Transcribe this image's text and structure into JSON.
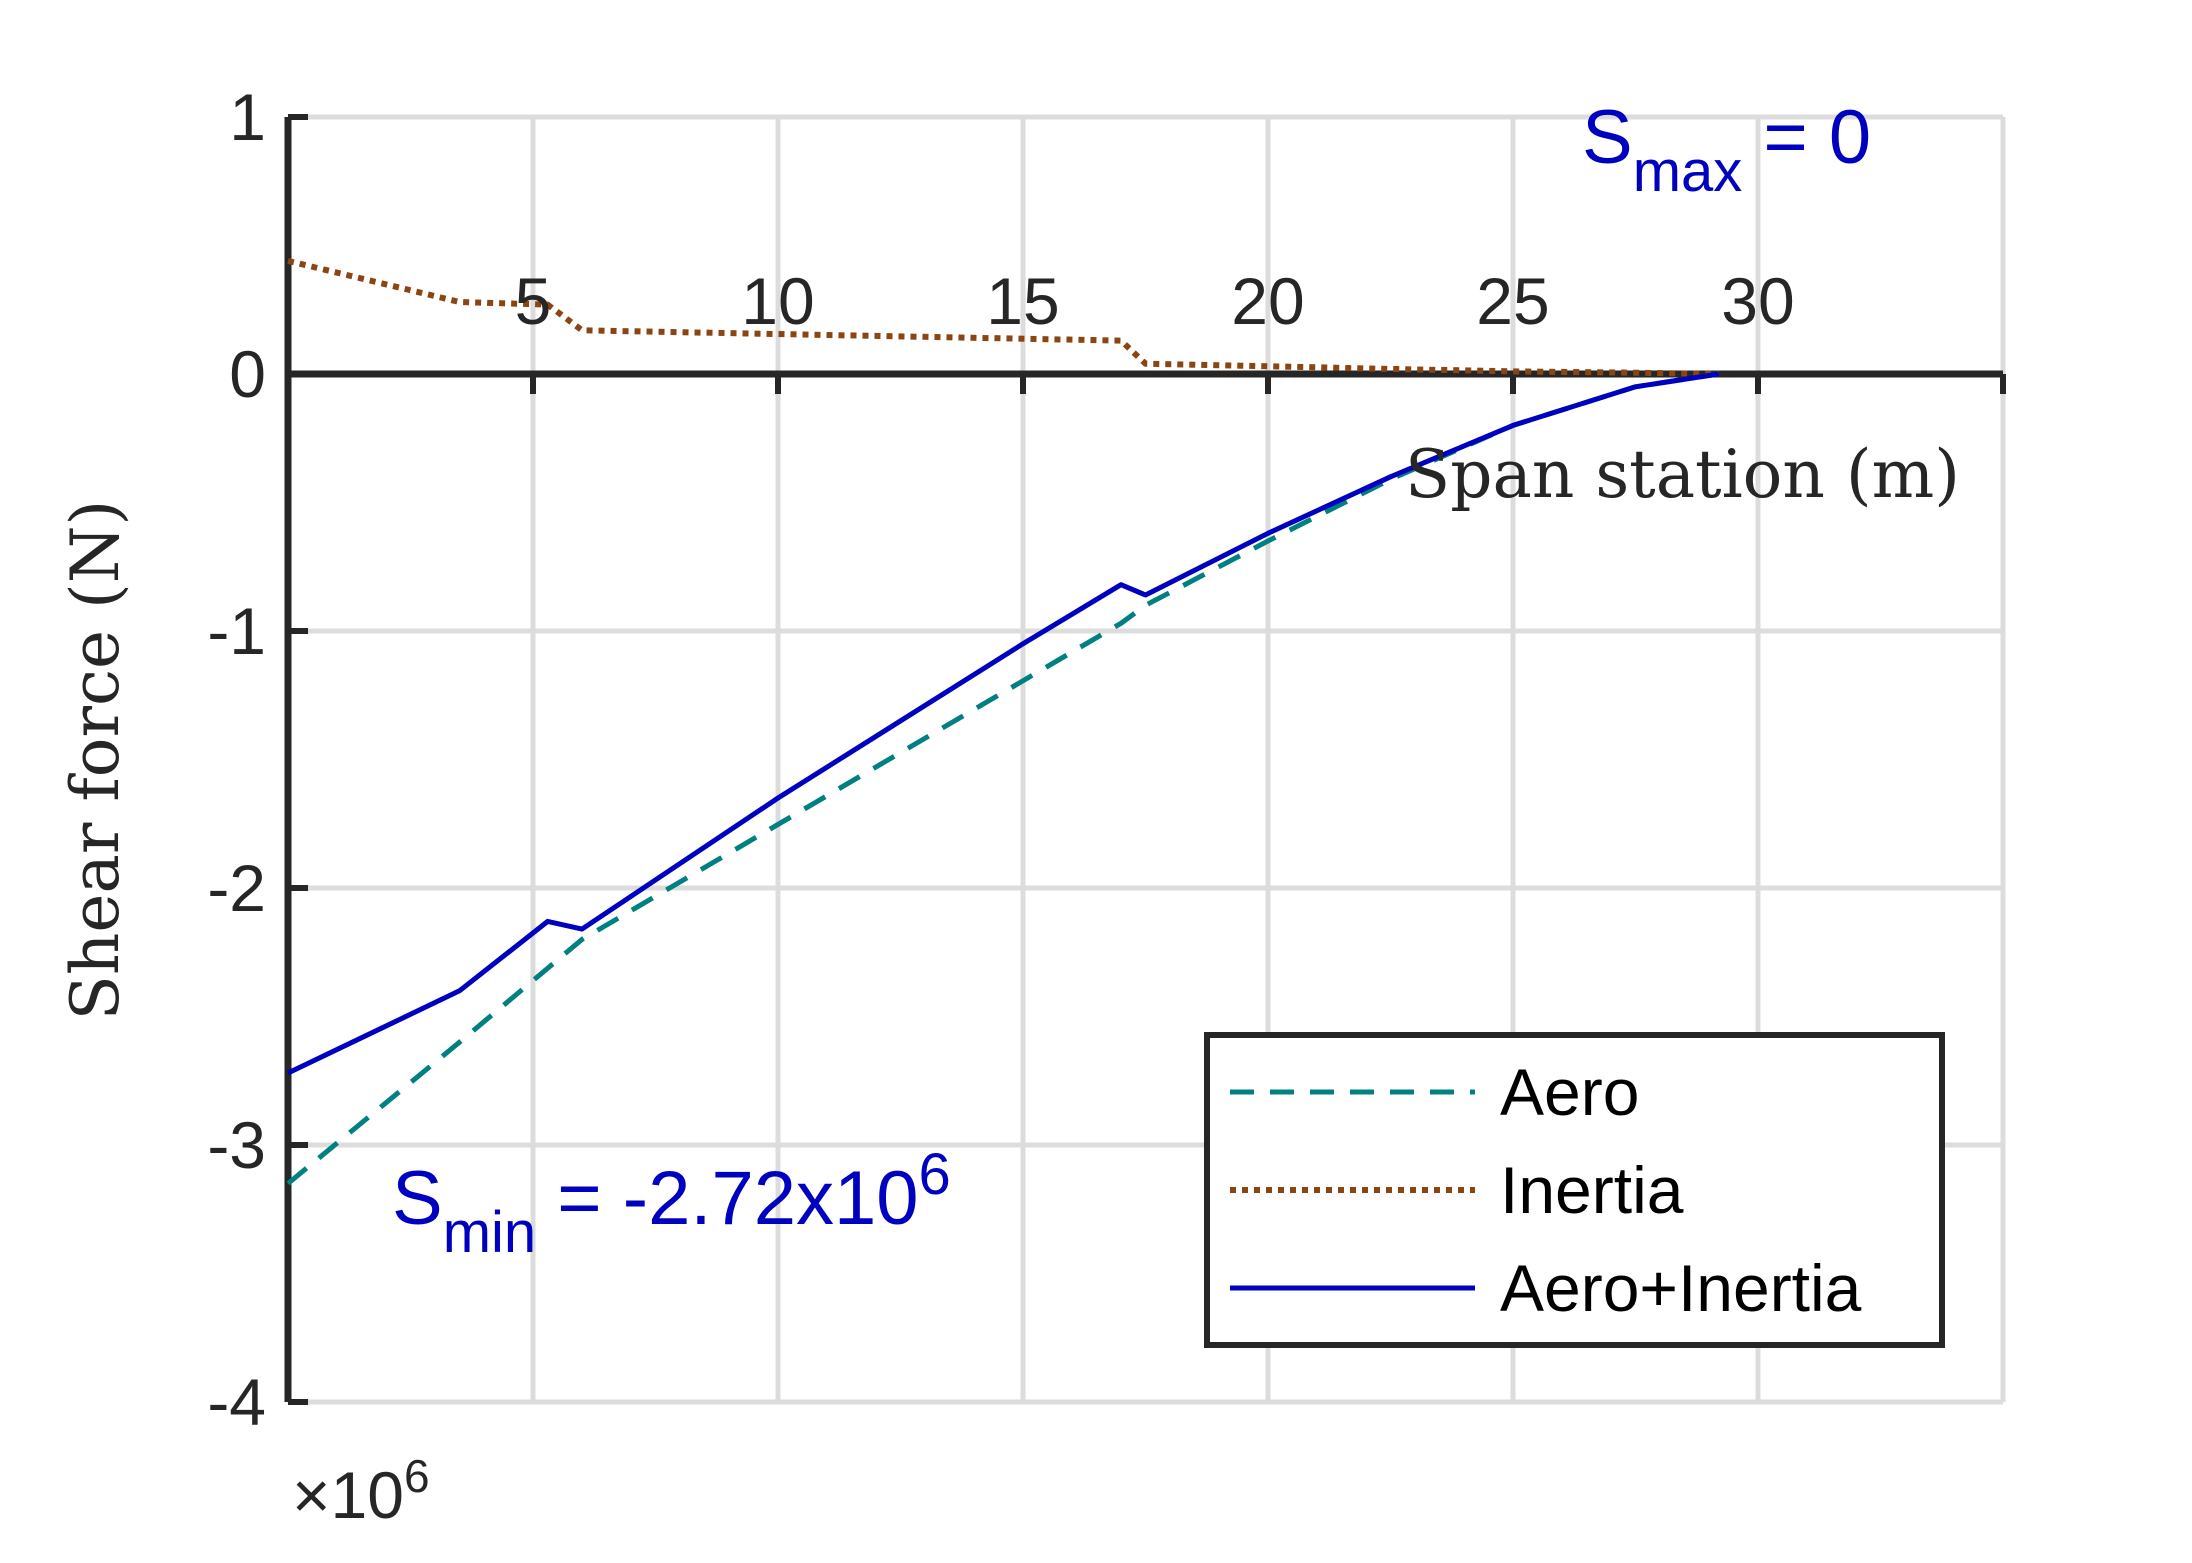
{
  "chart_data": {
    "type": "line",
    "xlabel": "Span station (m)",
    "ylabel": "Shear force (N)",
    "xlim": [
      0,
      35
    ],
    "ylim": [
      -4,
      1
    ],
    "x_ticks": [
      5,
      10,
      15,
      20,
      25,
      30
    ],
    "x_tick_labels": [
      "5",
      "10",
      "15",
      "20",
      "25",
      "30"
    ],
    "y_ticks": [
      1,
      0,
      -1,
      -2,
      -3,
      -4
    ],
    "y_tick_labels": [
      "1",
      "0",
      "-1",
      "-2",
      "-3",
      "-4"
    ],
    "y_exponent_label": {
      "prefix": "×10",
      "sup": "6"
    },
    "x_axis_position": "origin",
    "grid": true,
    "legend_position": "bottom-right",
    "series": [
      {
        "name": "Aero",
        "color": "#008080",
        "style": "dashed",
        "x": [
          0,
          3.5,
          5.5,
          6,
          17,
          17.5,
          20,
          22.5,
          25,
          27.5,
          29.2
        ],
        "y": [
          -3.15,
          -2.6,
          -2.28,
          -2.2,
          -0.97,
          -0.9,
          -0.65,
          -0.41,
          -0.2,
          -0.05,
          0
        ]
      },
      {
        "name": "Inertia",
        "color": "#8b4513",
        "style": "dotted",
        "x": [
          0,
          3.5,
          5.3,
          6,
          17,
          17.5,
          20,
          22.5,
          25,
          27.5,
          29.2
        ],
        "y": [
          0.44,
          0.28,
          0.27,
          0.17,
          0.13,
          0.04,
          0.03,
          0.02,
          0.01,
          0.005,
          0
        ]
      },
      {
        "name": "Aero+Inertia",
        "color": "#0000c0",
        "style": "solid",
        "x": [
          0,
          3.5,
          5.3,
          6,
          10,
          15,
          17,
          17.5,
          20,
          22.5,
          25,
          27.5,
          29.2
        ],
        "y": [
          -2.72,
          -2.4,
          -2.13,
          -2.16,
          -1.65,
          -1.05,
          -0.82,
          -0.86,
          -0.62,
          -0.4,
          -0.2,
          -0.05,
          0
        ]
      }
    ],
    "annotations": {
      "smax": {
        "main": "S",
        "sub": "max",
        "rest": " = 0"
      },
      "smin": {
        "main": "S",
        "sub": "min",
        "rest": " = -2.72x10",
        "sup": "6"
      }
    }
  }
}
